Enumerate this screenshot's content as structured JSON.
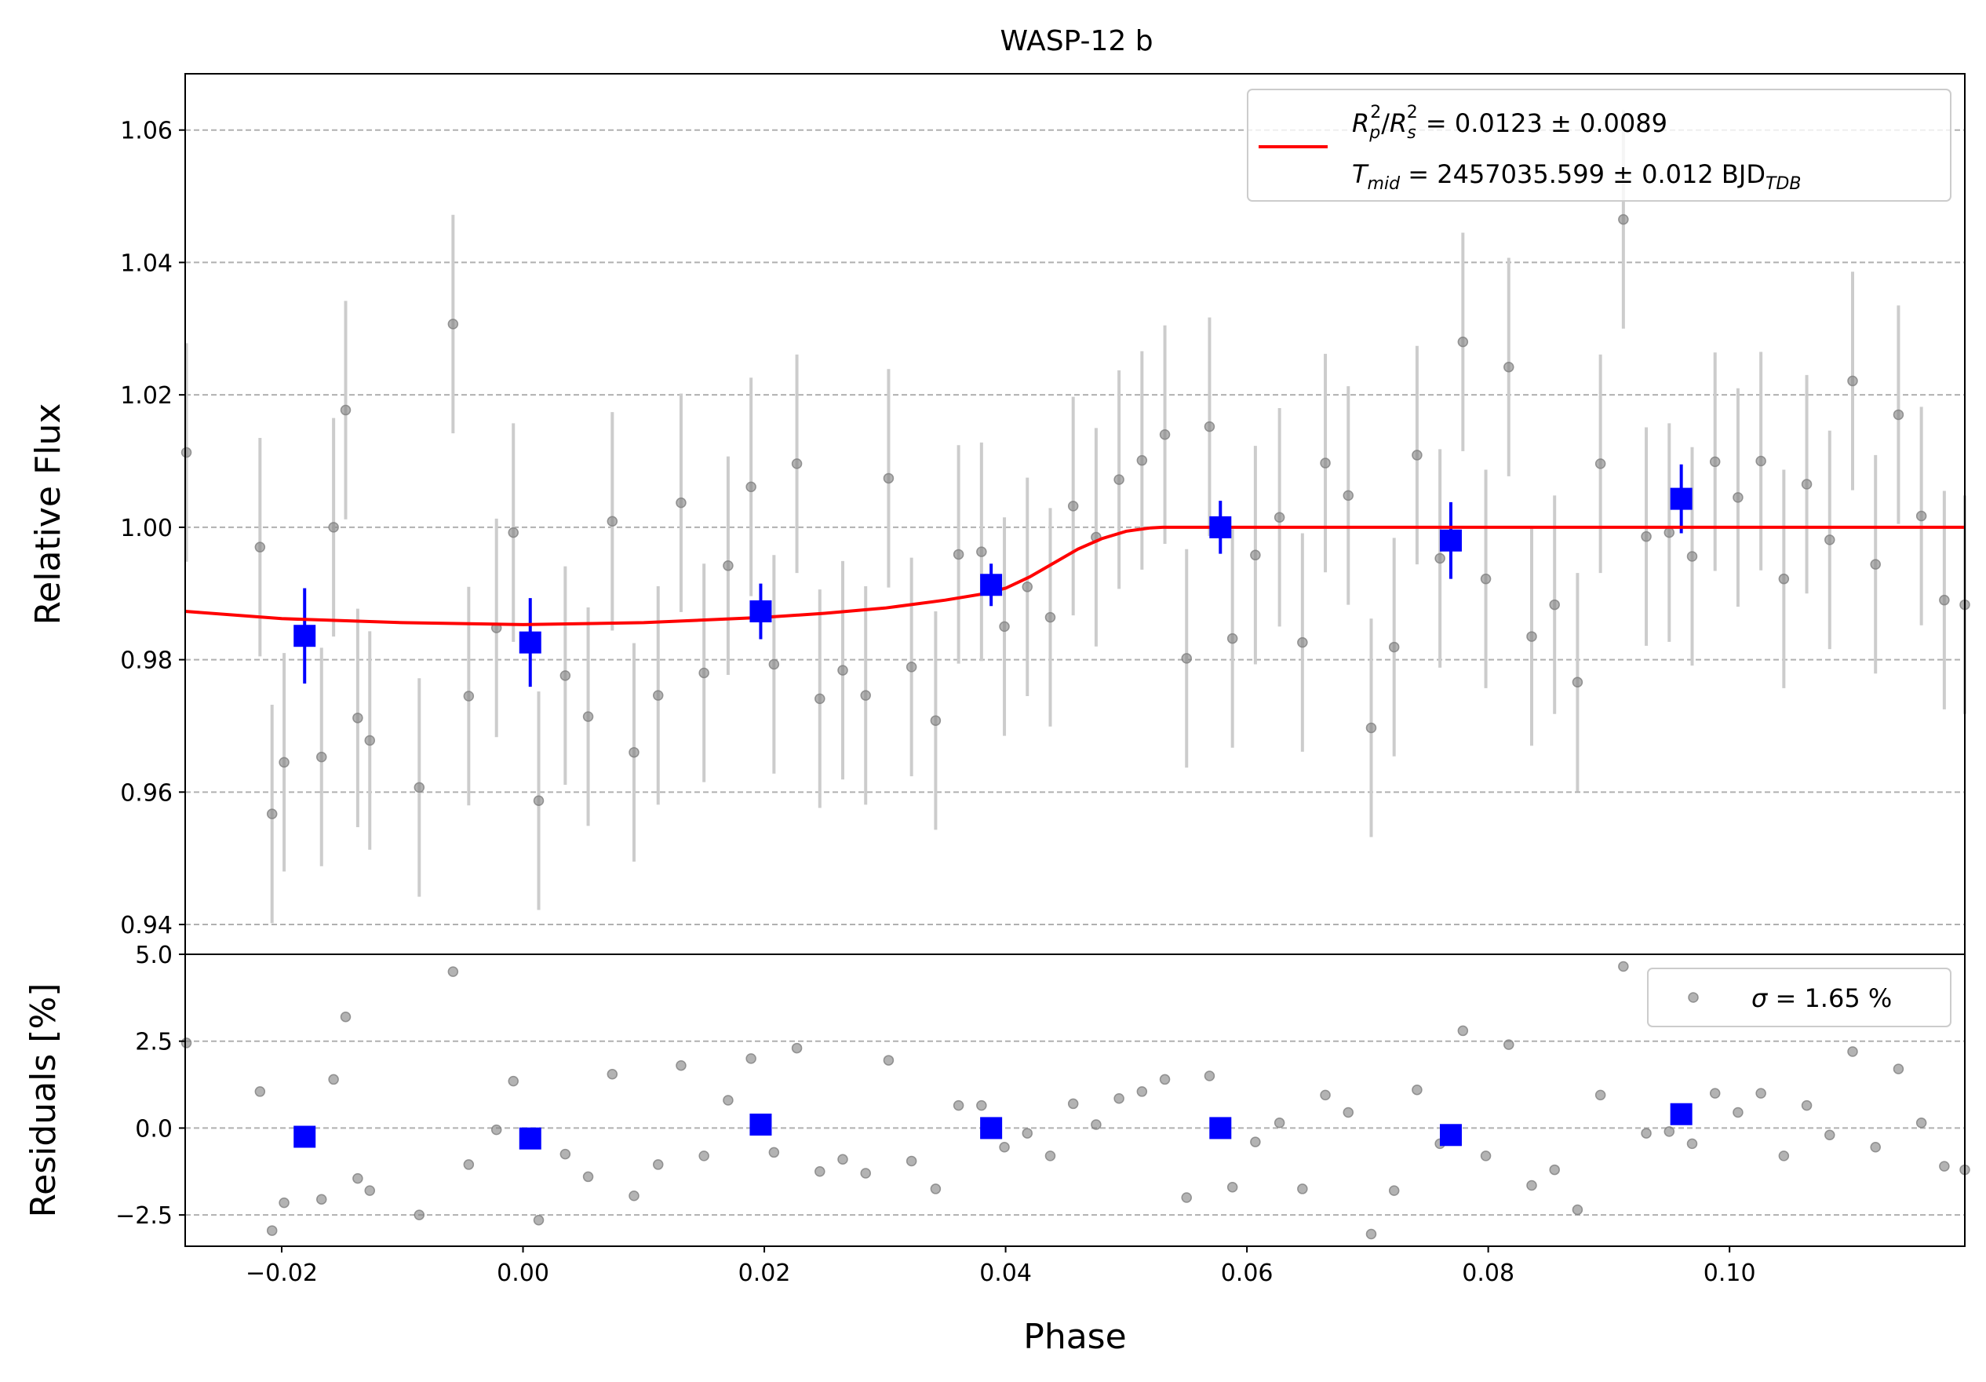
{
  "chart_data": [
    {
      "type": "scatter",
      "title": "WASP-12 b",
      "xlabel": "",
      "ylabel": "Relative Flux",
      "xlim": [
        -0.028,
        0.1195
      ],
      "ylim": [
        0.9355,
        1.0685
      ],
      "xtick_labels": [
        "−0.02",
        "0.00",
        "0.02",
        "0.04",
        "0.06",
        "0.08",
        "0.10"
      ],
      "xticks": [
        -0.02,
        0.0,
        0.02,
        0.04,
        0.06,
        0.08,
        0.1
      ],
      "ytick_labels": [
        "0.94",
        "0.96",
        "0.98",
        "1.00",
        "1.02",
        "1.04",
        "1.06"
      ],
      "yticks": [
        0.94,
        0.96,
        0.98,
        1.0,
        1.02,
        1.04,
        1.06
      ],
      "grid": "horizontal dashed",
      "legend": {
        "placement": "top-right",
        "line1": {
          "r": "R",
          "p": "p",
          "sq": "2",
          "rs": "R",
          "s": "s",
          "value": " = 0.0123 ± 0.0089"
        },
        "line2": {
          "t": "T",
          "mid": "mid",
          "value": " = 2457035.599 ± 0.012 BJD",
          "tdb": "TDB"
        }
      },
      "series": [
        {
          "role": "raw",
          "color": "#808080",
          "errorbar_color": "#cccccc",
          "x": [
            -0.0279,
            -0.0218,
            -0.0208,
            -0.0198,
            -0.0167,
            -0.0157,
            -0.0147,
            -0.0137,
            -0.0127,
            -0.0086,
            -0.0058,
            -0.0045,
            -0.0022,
            -0.0008,
            0.0013,
            0.0035,
            0.0054,
            0.0074,
            0.0092,
            0.0112,
            0.0131,
            0.015,
            0.017,
            0.0189,
            0.0208,
            0.0227,
            0.0246,
            0.0265,
            0.0284,
            0.0303,
            0.0322,
            0.0342,
            0.0361,
            0.038,
            0.0399,
            0.0418,
            0.0437,
            0.0456,
            0.0475,
            0.0494,
            0.0513,
            0.0532,
            0.055,
            0.0569,
            0.0588,
            0.0607,
            0.0627,
            0.0646,
            0.0665,
            0.0684,
            0.0703,
            0.0722,
            0.0741,
            0.076,
            0.0779,
            0.0798,
            0.0817,
            0.0836,
            0.0855,
            0.0874,
            0.0893,
            0.0912,
            0.0931,
            0.095,
            0.0969,
            0.0988,
            0.1007,
            0.1026,
            0.1045,
            0.1064,
            0.1083,
            0.1102,
            0.1121,
            0.114,
            0.1159,
            0.1178,
            0.1195
          ],
          "y": [
            1.0113,
            0.997,
            0.9567,
            0.9645,
            0.9653,
            1.0,
            1.0177,
            0.9712,
            0.9678,
            0.9607,
            1.0307,
            0.9745,
            0.9848,
            0.9992,
            0.9587,
            0.9776,
            0.9714,
            1.0009,
            0.966,
            0.9746,
            1.0037,
            0.978,
            0.9942,
            1.0061,
            0.9793,
            1.0096,
            0.9741,
            0.9784,
            0.9746,
            1.0074,
            0.9789,
            0.9708,
            0.9959,
            0.9963,
            0.985,
            0.991,
            0.9864,
            1.0032,
            0.9985,
            1.0072,
            1.0101,
            1.014,
            0.9802,
            1.0152,
            0.9832,
            0.9958,
            1.0015,
            0.9826,
            1.0097,
            1.0048,
            0.9697,
            0.9819,
            1.0109,
            0.9953,
            1.028,
            0.9922,
            1.0242,
            0.9835,
            0.9883,
            0.9766,
            1.0096,
            1.0465,
            0.9986,
            0.9992,
            0.9956,
            1.0099,
            1.0045,
            1.01,
            0.9922,
            1.0065,
            0.9981,
            1.0221,
            0.9944,
            1.017,
            1.0017,
            0.989,
            0.9883
          ],
          "yerr": 0.0165
        },
        {
          "role": "binned",
          "color": "#0000ff",
          "x": [
            -0.0181,
            0.0006,
            0.0197,
            0.0388,
            0.0578,
            0.0769,
            0.096
          ],
          "y": [
            0.9836,
            0.9826,
            0.9873,
            0.9913,
            1.0,
            0.998,
            1.0043
          ],
          "yerr": [
            0.0072,
            0.0067,
            0.0042,
            0.0032,
            0.004,
            0.0058,
            0.0052
          ]
        },
        {
          "role": "model",
          "color": "#ff0000",
          "x": [
            -0.028,
            -0.02,
            -0.01,
            0.0,
            0.01,
            0.02,
            0.025,
            0.03,
            0.035,
            0.038,
            0.04,
            0.042,
            0.044,
            0.046,
            0.048,
            0.05,
            0.052,
            0.053,
            0.06,
            0.08,
            0.1,
            0.1195
          ],
          "y": [
            0.9873,
            0.9862,
            0.9856,
            0.9853,
            0.9856,
            0.9864,
            0.987,
            0.9878,
            0.989,
            0.9899,
            0.9908,
            0.9925,
            0.9946,
            0.9967,
            0.9983,
            0.9994,
            0.9999,
            1.0,
            1.0,
            1.0,
            1.0,
            1.0
          ]
        }
      ]
    },
    {
      "type": "scatter",
      "title": "",
      "xlabel": "Phase",
      "ylabel": "Residuals [%]",
      "xlim": [
        -0.028,
        0.1195
      ],
      "ylim": [
        -3.4,
        5.0
      ],
      "xtick_labels": [
        "−0.02",
        "0.00",
        "0.02",
        "0.04",
        "0.06",
        "0.08",
        "0.10"
      ],
      "xticks": [
        -0.02,
        0.0,
        0.02,
        0.04,
        0.06,
        0.08,
        0.1
      ],
      "ytick_labels": [
        "−2.5",
        "0.0",
        "2.5",
        "5.0"
      ],
      "yticks": [
        -2.5,
        0.0,
        2.5,
        5.0
      ],
      "grid": "horizontal dashed",
      "legend": {
        "placement": "top-right",
        "sigma_symbol": "σ",
        "sigma_value": " = 1.65 %"
      },
      "series": [
        {
          "role": "raw",
          "color": "#808080",
          "x": [
            -0.0279,
            -0.0218,
            -0.0208,
            -0.0198,
            -0.0167,
            -0.0157,
            -0.0147,
            -0.0137,
            -0.0127,
            -0.0086,
            -0.0058,
            -0.0045,
            -0.0022,
            -0.0008,
            0.0013,
            0.0035,
            0.0054,
            0.0074,
            0.0092,
            0.0112,
            0.0131,
            0.015,
            0.017,
            0.0189,
            0.0208,
            0.0227,
            0.0246,
            0.0265,
            0.0284,
            0.0303,
            0.0322,
            0.0342,
            0.0361,
            0.038,
            0.0399,
            0.0418,
            0.0437,
            0.0456,
            0.0475,
            0.0494,
            0.0513,
            0.0532,
            0.055,
            0.0569,
            0.0588,
            0.0607,
            0.0627,
            0.0646,
            0.0665,
            0.0684,
            0.0703,
            0.0722,
            0.0741,
            0.076,
            0.0779,
            0.0798,
            0.0817,
            0.0836,
            0.0855,
            0.0874,
            0.0893,
            0.0912,
            0.0931,
            0.095,
            0.0969,
            0.0988,
            0.1007,
            0.1026,
            0.1045,
            0.1064,
            0.1083,
            0.1102,
            0.1121,
            0.114,
            0.1159,
            0.1178,
            0.1195
          ],
          "y": [
            2.45,
            1.05,
            -2.95,
            -2.15,
            -2.05,
            1.4,
            3.2,
            -1.45,
            -1.8,
            -2.5,
            4.5,
            -1.05,
            -0.05,
            1.35,
            -2.65,
            -0.75,
            -1.4,
            1.55,
            -1.95,
            -1.05,
            1.8,
            -0.8,
            0.8,
            2.0,
            -0.7,
            2.3,
            -1.25,
            -0.9,
            -1.3,
            1.95,
            -0.95,
            -1.75,
            0.65,
            0.65,
            -0.55,
            -0.15,
            -0.8,
            0.7,
            0.1,
            0.85,
            1.05,
            1.4,
            -2.0,
            1.5,
            -1.7,
            -0.4,
            0.15,
            -1.75,
            0.95,
            0.45,
            -3.05,
            -1.8,
            1.1,
            -0.45,
            2.8,
            -0.8,
            2.4,
            -1.65,
            -1.2,
            -2.35,
            0.95,
            4.65,
            -0.15,
            -0.1,
            -0.45,
            1.0,
            0.45,
            1.0,
            -0.8,
            0.65,
            -0.2,
            2.2,
            -0.55,
            1.7,
            0.15,
            -1.1,
            -1.2
          ]
        },
        {
          "role": "binned",
          "color": "#0000ff",
          "x": [
            -0.0181,
            0.0006,
            0.0197,
            0.0388,
            0.0578,
            0.0769,
            0.096
          ],
          "y": [
            -0.25,
            -0.3,
            0.1,
            0.0,
            0.0,
            -0.2,
            0.4
          ]
        }
      ]
    }
  ]
}
